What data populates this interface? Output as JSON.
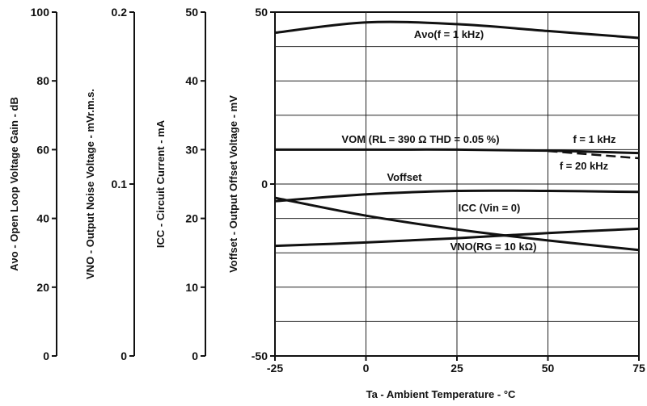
{
  "chart_data": {
    "type": "line",
    "x": [
      -25,
      0,
      25,
      50,
      75
    ],
    "xlim": [
      -25,
      75
    ],
    "xticks": [
      "-25",
      "0",
      "25",
      "50",
      "75"
    ],
    "xlabel": "Ta - Ambient Temperature - °C",
    "grid": true,
    "axes": [
      {
        "id": "avo",
        "ylabel": "Aνo - Open Loop Voltage Gain - dB",
        "ylim": [
          0,
          100
        ],
        "ticks": [
          "0",
          "20",
          "40",
          "60",
          "80",
          "100"
        ]
      },
      {
        "id": "vno",
        "ylabel": "VNO - Output Noise Voltage - mVr.m.s.",
        "ylim": [
          0,
          0.2
        ],
        "ticks": [
          "0",
          "0.1",
          "0.2"
        ]
      },
      {
        "id": "icc",
        "ylabel": "ICC - Circuit Current - mA",
        "ylim": [
          0,
          50
        ],
        "ticks": [
          "0",
          "10",
          "20",
          "30",
          "40",
          "50"
        ]
      },
      {
        "id": "voff",
        "ylabel": "Voffset - Output Offset Voltage - mV",
        "ylim": [
          -50,
          50
        ],
        "ticks": [
          "-50",
          "0",
          "50"
        ]
      }
    ],
    "series": [
      {
        "name": "Aνo(f = 1 kHz)",
        "axis": "avo",
        "x": [
          -25,
          0,
          25,
          50,
          75
        ],
        "values": [
          94,
          97,
          96.5,
          94.5,
          92.5
        ]
      },
      {
        "name": "VOM (RL = 390 Ω  THD = 0.05 %)",
        "axis": "avo",
        "note": "f = 1 kHz",
        "x": [
          -25,
          0,
          25,
          50,
          75
        ],
        "values": [
          60,
          60,
          60,
          59.7,
          59
        ]
      },
      {
        "name": "VOM (RL = 390 Ω  THD = 0.05 %)",
        "axis": "avo",
        "note": "f = 20 kHz",
        "dashed": true,
        "x": [
          50,
          75
        ],
        "values": [
          59.6,
          57.5
        ]
      },
      {
        "name": "Voffset",
        "axis": "voff",
        "x": [
          -25,
          0,
          25,
          50,
          75
        ],
        "values": [
          -5,
          -3,
          -2,
          -2,
          -2.3
        ]
      },
      {
        "name": "ICC (Vin = 0)",
        "axis": "icc",
        "x": [
          -25,
          0,
          25,
          50,
          75
        ],
        "values": [
          23,
          20.4,
          18.4,
          16.8,
          15.4
        ]
      },
      {
        "name": "VNO(RG = 10 kΩ)",
        "axis": "vno",
        "x": [
          -25,
          0,
          25,
          50,
          75
        ],
        "values": [
          0.064,
          0.066,
          0.0685,
          0.0715,
          0.074
        ]
      }
    ]
  }
}
